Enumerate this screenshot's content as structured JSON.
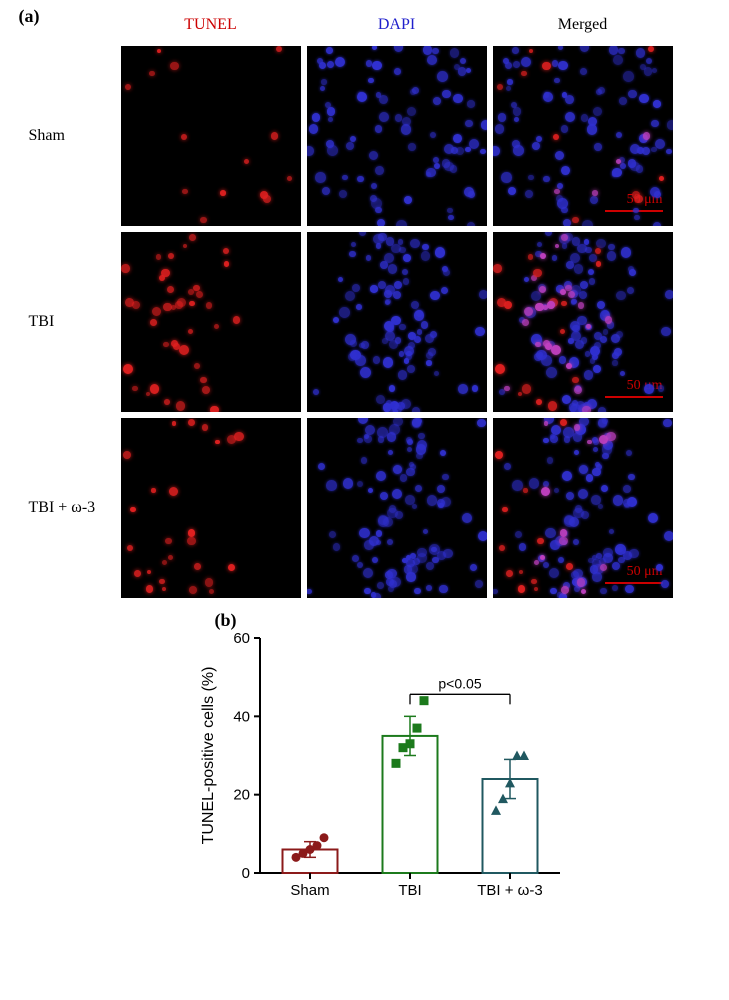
{
  "panel_a": {
    "letter": "(a)",
    "col_headers": [
      "TUNEL",
      "DAPI",
      "Merged"
    ],
    "col_header_colors": [
      "#cc0000",
      "#2020cc",
      "#000000"
    ],
    "row_labels": [
      "Sham",
      "TBI",
      "TBI + ω-3"
    ],
    "scalebar": "50 μm",
    "colors": {
      "tunel": "#e02020",
      "dapi": "#3030d0",
      "merged_overlap": "#c040c0",
      "background": "#000000"
    }
  },
  "panel_b": {
    "letter": "(b)",
    "chart": {
      "type": "bar",
      "ylabel": "TUNEL-positive cells (%)",
      "categories": [
        "Sham",
        "TBI",
        "TBI + ω-3"
      ],
      "mean_values": [
        6,
        35,
        24
      ],
      "error_values": [
        2,
        5,
        5
      ],
      "scatter_points": [
        [
          4,
          5,
          6,
          7,
          9
        ],
        [
          28,
          32,
          33,
          37,
          44
        ],
        [
          16,
          19,
          23,
          30,
          30
        ]
      ],
      "bar_outline_colors": [
        "#8b1a1a",
        "#1c7a1c",
        "#205860"
      ],
      "marker_shapes": [
        "circle",
        "square",
        "triangle"
      ],
      "marker_colors": [
        "#8b1a1a",
        "#1c7a1c",
        "#205860"
      ],
      "ylim": [
        0,
        60
      ],
      "ytick_step": 20,
      "significance": {
        "label": "p<0.05",
        "between": [
          1,
          2
        ]
      },
      "bar_width": 0.55,
      "axis_color": "#000000",
      "label_fontsize": 15,
      "ylabel_fontsize": 16
    }
  }
}
